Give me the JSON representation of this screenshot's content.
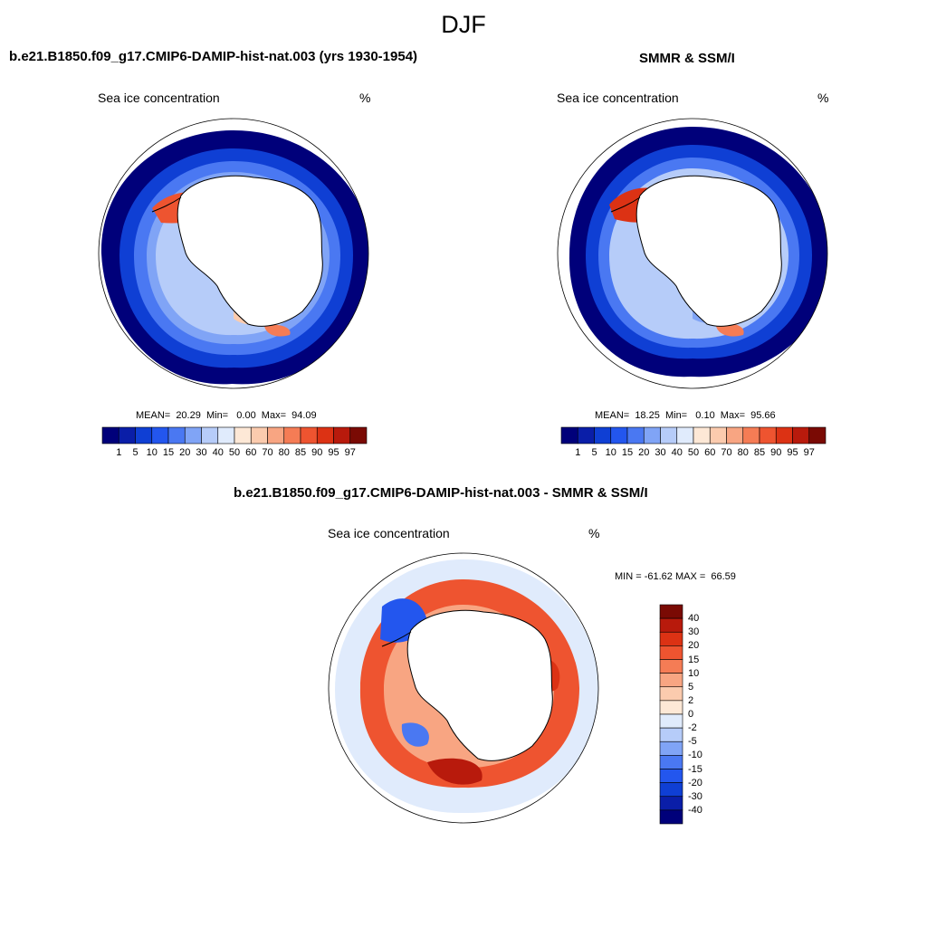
{
  "figure": {
    "season": "DJF"
  },
  "panels": {
    "model": {
      "title": "b.e21.B1850.f09_g17.CMIP6-DAMIP-hist-nat.003 (yrs 1930-1954)",
      "left_label": "Sea ice concentration",
      "right_label": "%",
      "stats": "MEAN=  20.29  Min=   0.00  Max=  94.09"
    },
    "obs": {
      "title": "SMMR & SSM/I",
      "left_label": "Sea ice concentration",
      "right_label": "%",
      "stats": "MEAN=  18.25  Min=   0.10  Max=  95.66"
    },
    "diff": {
      "title": "b.e21.B1850.f09_g17.CMIP6-DAMIP-hist-nat.003 - SMMR & SSM/I",
      "left_label": "Sea ice concentration",
      "right_label": "%",
      "minmax": "MIN = -61.62 MAX =  66.59"
    }
  },
  "colorbars": {
    "concentration": {
      "colors": [
        "#00007a",
        "#0a1ea8",
        "#0f3fd4",
        "#2356ee",
        "#4a78f2",
        "#80a4f6",
        "#b6ccf9",
        "#e0ebfc",
        "#fde8d6",
        "#fbcbae",
        "#f8a582",
        "#f57c55",
        "#ee5430",
        "#dc3214",
        "#b81a0c",
        "#7a0a04"
      ],
      "labels": [
        "1",
        "5",
        "10",
        "15",
        "20",
        "30",
        "40",
        "50",
        "60",
        "70",
        "80",
        "85",
        "90",
        "95",
        "97"
      ]
    },
    "difference": {
      "colors": [
        "#7a0a04",
        "#b81a0c",
        "#dc3214",
        "#ee5430",
        "#f57c55",
        "#f8a582",
        "#fbcbae",
        "#fde8d6",
        "#e0ebfc",
        "#b6ccf9",
        "#80a4f6",
        "#4a78f2",
        "#2356ee",
        "#0f3fd4",
        "#0a1ea8",
        "#00007a"
      ],
      "labels": [
        "40",
        "30",
        "20",
        "15",
        "10",
        "5",
        "2",
        "0",
        "-2",
        "-5",
        "-10",
        "-15",
        "-20",
        "-30",
        "-40"
      ]
    }
  }
}
